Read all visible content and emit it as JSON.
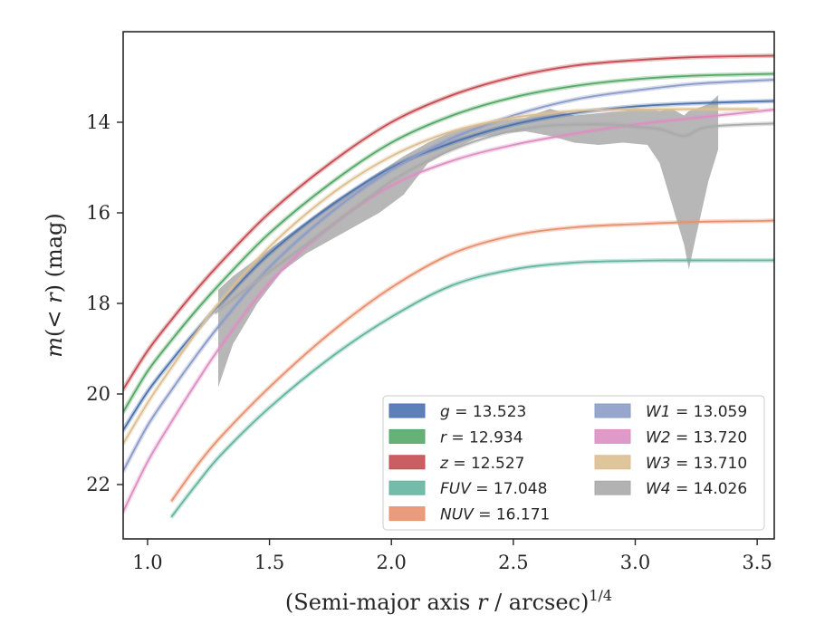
{
  "chart_data": {
    "type": "line",
    "xlabel": "(Semi-major axis r / arcsec)^{1/4}",
    "ylabel": "m(< r) (mag)",
    "xlim": [
      0.9,
      3.57
    ],
    "ylim": [
      23.2,
      12.0
    ],
    "y_inverted": true,
    "xticks": [
      1.0,
      1.5,
      2.0,
      2.5,
      3.0,
      3.5
    ],
    "xtick_labels": [
      "1.0",
      "1.5",
      "2.0",
      "2.5",
      "3.0",
      "3.5"
    ],
    "yticks": [
      14,
      16,
      18,
      20,
      22
    ],
    "ytick_labels": [
      "14",
      "16",
      "18",
      "20",
      "22"
    ],
    "legend_position": "lower-right",
    "grid": false,
    "series": [
      {
        "key": "g",
        "name": "g = 13.523",
        "color": "#4c72b0",
        "final_mag": 13.523,
        "points": [
          [
            0.9,
            20.8
          ],
          [
            1.0,
            19.95
          ],
          [
            1.1,
            19.25
          ],
          [
            1.2,
            18.6
          ],
          [
            1.3,
            18.0
          ],
          [
            1.5,
            16.9
          ],
          [
            1.75,
            15.85
          ],
          [
            2.0,
            15.0
          ],
          [
            2.25,
            14.45
          ],
          [
            2.5,
            14.05
          ],
          [
            2.75,
            13.8
          ],
          [
            3.0,
            13.65
          ],
          [
            3.25,
            13.58
          ],
          [
            3.57,
            13.53
          ]
        ]
      },
      {
        "key": "r",
        "name": "r = 12.934",
        "color": "#55a868",
        "final_mag": 12.934,
        "points": [
          [
            0.9,
            20.4
          ],
          [
            1.0,
            19.5
          ],
          [
            1.1,
            18.8
          ],
          [
            1.2,
            18.15
          ],
          [
            1.3,
            17.55
          ],
          [
            1.5,
            16.45
          ],
          [
            1.75,
            15.35
          ],
          [
            2.0,
            14.45
          ],
          [
            2.25,
            13.85
          ],
          [
            2.5,
            13.45
          ],
          [
            2.75,
            13.2
          ],
          [
            3.0,
            13.05
          ],
          [
            3.25,
            12.97
          ],
          [
            3.57,
            12.93
          ]
        ]
      },
      {
        "key": "z",
        "name": "z = 12.527",
        "color": "#c44e52",
        "final_mag": 12.527,
        "points": [
          [
            0.9,
            19.9
          ],
          [
            1.0,
            19.05
          ],
          [
            1.1,
            18.35
          ],
          [
            1.2,
            17.7
          ],
          [
            1.3,
            17.1
          ],
          [
            1.5,
            16.0
          ],
          [
            1.75,
            14.9
          ],
          [
            2.0,
            14.0
          ],
          [
            2.25,
            13.4
          ],
          [
            2.5,
            13.0
          ],
          [
            2.75,
            12.75
          ],
          [
            3.0,
            12.63
          ],
          [
            3.25,
            12.56
          ],
          [
            3.57,
            12.53
          ]
        ]
      },
      {
        "key": "FUV",
        "name": "FUV = 17.048",
        "color": "#64b5a0",
        "final_mag": 17.048,
        "points": [
          [
            1.1,
            22.7
          ],
          [
            1.2,
            22.0
          ],
          [
            1.3,
            21.35
          ],
          [
            1.5,
            20.3
          ],
          [
            1.75,
            19.2
          ],
          [
            2.0,
            18.3
          ],
          [
            2.25,
            17.6
          ],
          [
            2.5,
            17.25
          ],
          [
            2.75,
            17.1
          ],
          [
            3.0,
            17.06
          ],
          [
            3.12,
            17.05
          ],
          [
            3.57,
            17.048
          ]
        ]
      },
      {
        "key": "NUV",
        "name": "NUV = 16.171",
        "color": "#e8916f",
        "final_mag": 16.171,
        "points": [
          [
            1.1,
            22.35
          ],
          [
            1.2,
            21.6
          ],
          [
            1.3,
            20.95
          ],
          [
            1.5,
            19.85
          ],
          [
            1.75,
            18.65
          ],
          [
            2.0,
            17.65
          ],
          [
            2.25,
            16.9
          ],
          [
            2.5,
            16.5
          ],
          [
            2.75,
            16.32
          ],
          [
            3.0,
            16.25
          ],
          [
            3.25,
            16.2
          ],
          [
            3.5,
            16.18
          ],
          [
            3.57,
            16.171
          ]
        ]
      },
      {
        "key": "W1",
        "name": "W1 = 13.059",
        "color": "#8c9cc8",
        "final_mag": 13.059,
        "points": [
          [
            0.9,
            21.7
          ],
          [
            1.0,
            20.7
          ],
          [
            1.1,
            19.9
          ],
          [
            1.2,
            19.15
          ],
          [
            1.3,
            18.45
          ],
          [
            1.5,
            17.2
          ],
          [
            1.75,
            16.0
          ],
          [
            2.0,
            15.05
          ],
          [
            2.25,
            14.35
          ],
          [
            2.5,
            13.85
          ],
          [
            2.75,
            13.5
          ],
          [
            3.0,
            13.3
          ],
          [
            3.25,
            13.15
          ],
          [
            3.57,
            13.06
          ]
        ]
      },
      {
        "key": "W2",
        "name": "W2 = 13.720",
        "color": "#dd8fc4",
        "final_mag": 13.72,
        "points": [
          [
            0.9,
            22.6
          ],
          [
            1.0,
            21.5
          ],
          [
            1.1,
            20.6
          ],
          [
            1.2,
            19.75
          ],
          [
            1.3,
            18.95
          ],
          [
            1.5,
            17.55
          ],
          [
            1.75,
            16.3
          ],
          [
            2.0,
            15.4
          ],
          [
            2.25,
            14.85
          ],
          [
            2.5,
            14.5
          ],
          [
            2.75,
            14.25
          ],
          [
            3.0,
            14.05
          ],
          [
            3.25,
            13.9
          ],
          [
            3.57,
            13.72
          ]
        ]
      },
      {
        "key": "W3",
        "name": "W3 = 13.710",
        "color": "#dcbf90",
        "final_mag": 13.71,
        "points": [
          [
            0.9,
            21.1
          ],
          [
            1.0,
            20.2
          ],
          [
            1.1,
            19.4
          ],
          [
            1.2,
            18.65
          ],
          [
            1.3,
            17.95
          ],
          [
            1.5,
            16.75
          ],
          [
            1.75,
            15.6
          ],
          [
            2.0,
            14.75
          ],
          [
            2.25,
            14.2
          ],
          [
            2.5,
            13.9
          ],
          [
            2.75,
            13.75
          ],
          [
            3.0,
            13.72
          ],
          [
            3.25,
            13.71
          ],
          [
            3.5,
            13.71
          ]
        ]
      },
      {
        "key": "W4",
        "name": "W4 = 14.026",
        "color": "#aaaaaa",
        "final_mag": 14.026,
        "points": [
          [
            1.28,
            18.2
          ],
          [
            1.4,
            17.7
          ],
          [
            1.55,
            17.1
          ],
          [
            1.7,
            16.5
          ],
          [
            1.85,
            15.9
          ],
          [
            2.0,
            15.3
          ],
          [
            2.15,
            14.85
          ],
          [
            2.3,
            14.5
          ],
          [
            2.45,
            14.25
          ],
          [
            2.6,
            14.1
          ],
          [
            2.75,
            14.05
          ],
          [
            2.9,
            14.05
          ],
          [
            3.0,
            14.1
          ],
          [
            3.1,
            14.15
          ],
          [
            3.2,
            14.3
          ],
          [
            3.3,
            14.1
          ],
          [
            3.57,
            14.026
          ]
        ],
        "band_x": [
          1.29,
          1.35,
          1.45,
          1.55,
          1.65,
          1.75,
          1.85,
          1.95,
          2.05,
          2.15,
          2.25,
          2.35,
          2.45,
          2.55,
          2.65,
          2.75,
          2.85,
          2.95,
          3.05,
          3.1,
          3.15,
          3.2,
          3.22,
          3.25,
          3.3,
          3.34
        ],
        "band_low": [
          17.7,
          17.4,
          17.0,
          16.6,
          16.2,
          15.8,
          15.45,
          15.1,
          14.75,
          14.45,
          14.2,
          14.05,
          13.95,
          13.9,
          13.7,
          13.85,
          13.8,
          13.75,
          13.7,
          13.75,
          13.7,
          13.85,
          13.75,
          13.7,
          13.6,
          13.4
        ],
        "band_high": [
          19.85,
          18.9,
          18.0,
          17.3,
          16.9,
          16.6,
          16.3,
          16.0,
          15.6,
          14.9,
          14.6,
          14.35,
          14.25,
          14.2,
          14.3,
          14.45,
          14.5,
          14.45,
          14.5,
          14.9,
          15.8,
          16.7,
          17.25,
          16.5,
          15.3,
          14.6
        ]
      }
    ]
  }
}
